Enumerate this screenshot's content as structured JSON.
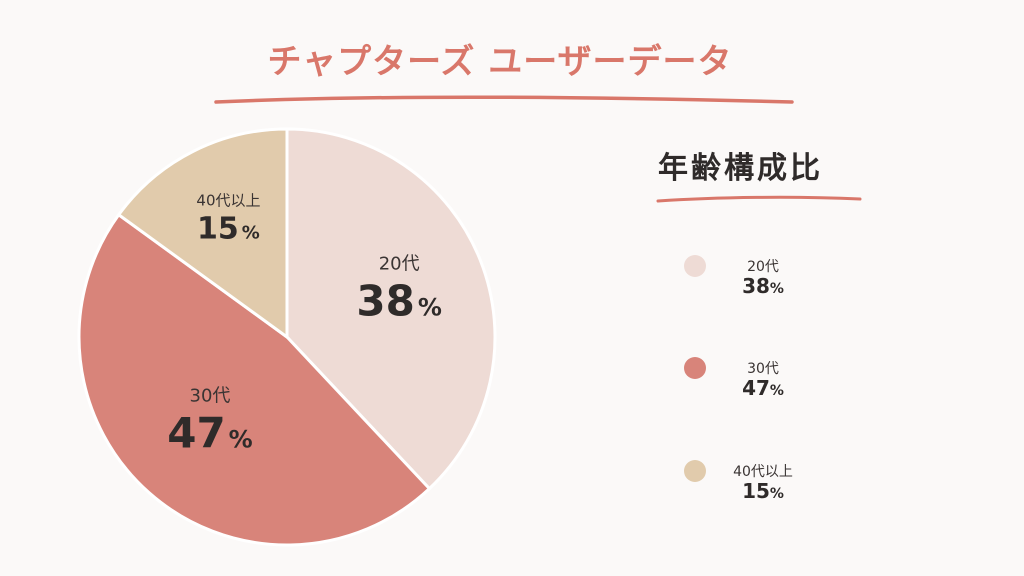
{
  "title": "チャプターズ ユーザーデータ",
  "colors": {
    "title": "#d9776a",
    "underline": "#d9776a",
    "background": "#fbf9f8"
  },
  "chart_data": {
    "type": "pie",
    "title": "年齢構成比",
    "unit": "%",
    "categories": [
      "20代",
      "30代",
      "40代以上"
    ],
    "values": [
      38,
      47,
      15
    ],
    "colors": [
      "#eedbd5",
      "#d8847a",
      "#e1cbac"
    ],
    "start_angle": "12 o'clock",
    "direction": "clockwise",
    "legend_position": "right"
  }
}
